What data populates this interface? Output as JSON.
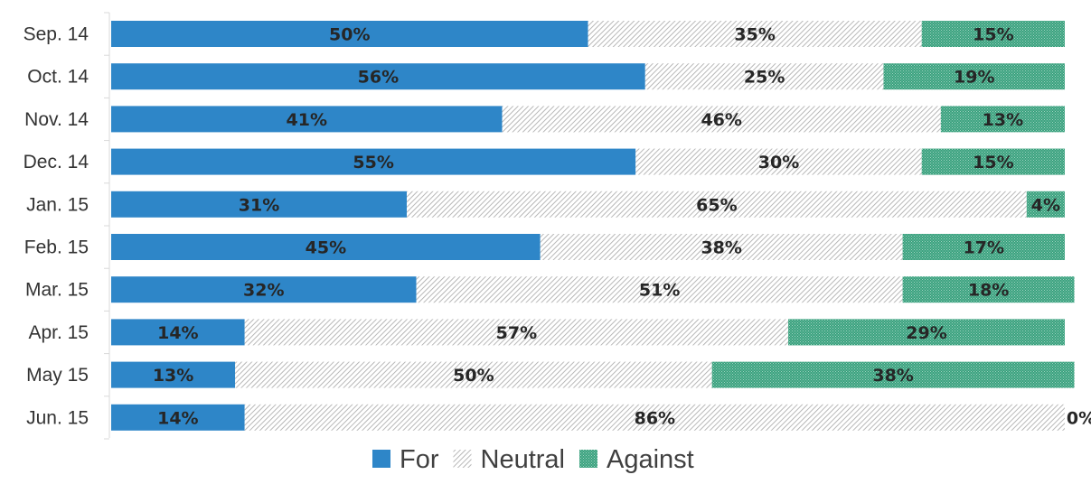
{
  "chart_data": {
    "type": "bar",
    "orientation": "horizontal",
    "stacked": true,
    "percent": true,
    "categories": [
      "Sep. 14",
      "Oct. 14",
      "Nov. 14",
      "Dec. 14",
      "Jan. 15",
      "Feb. 15",
      "Mar. 15",
      "Apr. 15",
      "May 15",
      "Jun. 15"
    ],
    "series": [
      {
        "name": "For",
        "color": "#2e86c8",
        "pattern": "solid",
        "values": [
          50,
          56,
          41,
          55,
          31,
          45,
          32,
          14,
          13,
          14
        ]
      },
      {
        "name": "Neutral",
        "color": "#a6a6a6",
        "pattern": "hatch",
        "values": [
          35,
          25,
          46,
          30,
          65,
          38,
          51,
          57,
          50,
          86
        ]
      },
      {
        "name": "Against",
        "color": "#3aa17e",
        "pattern": "dotted",
        "values": [
          15,
          19,
          13,
          15,
          4,
          17,
          18,
          29,
          38,
          0
        ]
      }
    ],
    "value_labels": [
      [
        "50%",
        "35%",
        "15%"
      ],
      [
        "56%",
        "25%",
        "19%"
      ],
      [
        "41%",
        "46%",
        "13%"
      ],
      [
        "55%",
        "30%",
        "15%"
      ],
      [
        "31%",
        "65%",
        "4%"
      ],
      [
        "45%",
        "38%",
        "17%"
      ],
      [
        "32%",
        "51%",
        "18%"
      ],
      [
        "14%",
        "57%",
        "29%"
      ],
      [
        "13%",
        "50%",
        "38%"
      ],
      [
        "14%",
        "86%",
        "0%"
      ]
    ],
    "title": "",
    "xlabel": "",
    "ylabel": "",
    "xlim": [
      0,
      100
    ],
    "grid": false,
    "legend": "bottom",
    "legend_entries": [
      "For",
      "Neutral",
      "Against"
    ]
  }
}
